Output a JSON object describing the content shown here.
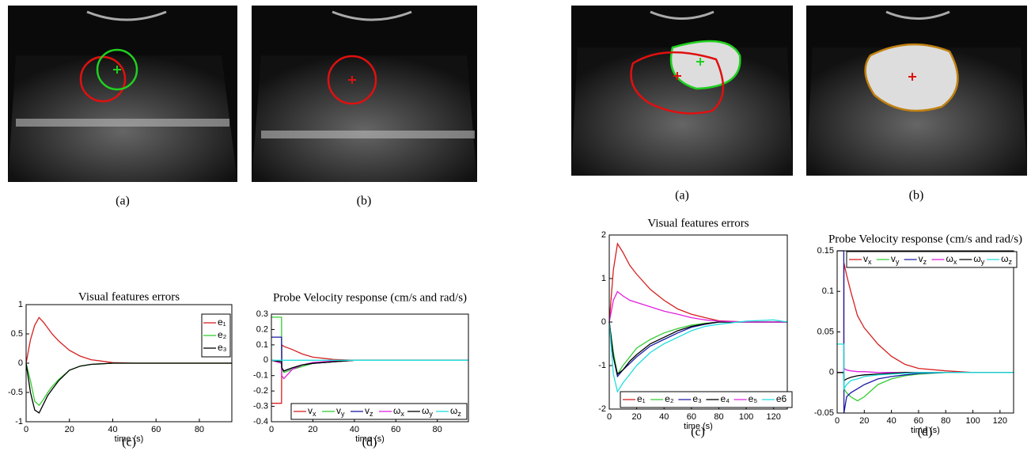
{
  "captions": [
    "(a)",
    "(b)",
    "(c)",
    "(d)",
    "(a)",
    "(b)",
    "(c)",
    "(d)"
  ],
  "chart_data": [
    {
      "type": "line",
      "title": "Visual features errors",
      "xlabel": "time (s)",
      "x": [
        0,
        2,
        4,
        6,
        8,
        10,
        12,
        15,
        20,
        25,
        30,
        40,
        50,
        60,
        80,
        95
      ],
      "xlim": [
        0,
        95
      ],
      "xticks": [
        0,
        20,
        40,
        60,
        80
      ],
      "ylim": [
        -1,
        1
      ],
      "yticks": [
        -1,
        -0.5,
        0,
        0.5,
        1
      ],
      "legend": "upper right",
      "series": [
        {
          "name": "e₁",
          "color": "#d62020",
          "values": [
            0,
            0.4,
            0.65,
            0.78,
            0.7,
            0.6,
            0.5,
            0.38,
            0.22,
            0.12,
            0.06,
            0.01,
            0,
            0,
            0,
            0
          ]
        },
        {
          "name": "e₂",
          "color": "#33cc33",
          "values": [
            0,
            -0.3,
            -0.65,
            -0.72,
            -0.62,
            -0.5,
            -0.4,
            -0.28,
            -0.12,
            -0.05,
            -0.02,
            0,
            0,
            0,
            0,
            0
          ]
        },
        {
          "name": "e₃",
          "color": "#000000",
          "values": [
            0,
            -0.5,
            -0.8,
            -0.85,
            -0.7,
            -0.55,
            -0.45,
            -0.3,
            -0.12,
            -0.05,
            -0.02,
            0,
            0,
            0,
            0,
            0
          ]
        }
      ]
    },
    {
      "type": "line",
      "title": "Probe Velocity response (cm/s and rad/s)",
      "xlabel": "time (s)",
      "x": [
        0,
        4.9,
        5,
        6,
        8,
        10,
        15,
        20,
        30,
        40,
        60,
        95
      ],
      "xlim": [
        0,
        95
      ],
      "xticks": [
        0,
        20,
        40,
        60,
        80
      ],
      "ylim": [
        -0.4,
        0.3
      ],
      "yticks": [
        -0.4,
        -0.3,
        -0.2,
        -0.1,
        0,
        0.1,
        0.2,
        0.3
      ],
      "legend": "lower right",
      "series": [
        {
          "name": "vx",
          "color": "#d62020",
          "values": [
            -0.28,
            -0.28,
            0.1,
            0.09,
            0.08,
            0.07,
            0.04,
            0.02,
            0.005,
            0,
            0,
            0
          ]
        },
        {
          "name": "vy",
          "color": "#33cc33",
          "values": [
            0.28,
            0.28,
            -0.05,
            -0.08,
            -0.07,
            -0.06,
            -0.04,
            -0.02,
            -0.01,
            0,
            0,
            0
          ]
        },
        {
          "name": "vz",
          "color": "#1a1aa6",
          "values": [
            0.15,
            0.15,
            -0.05,
            -0.07,
            -0.06,
            -0.05,
            -0.03,
            -0.02,
            -0.01,
            0,
            0,
            0
          ]
        },
        {
          "name": "ωx",
          "color": "#e020e0",
          "values": [
            0,
            -0.02,
            -0.1,
            -0.12,
            -0.09,
            -0.06,
            -0.03,
            -0.015,
            -0.005,
            0,
            0,
            0
          ]
        },
        {
          "name": "ωy",
          "color": "#000000",
          "values": [
            0,
            -0.01,
            -0.05,
            -0.07,
            -0.06,
            -0.05,
            -0.03,
            -0.02,
            -0.01,
            0,
            0,
            0
          ]
        },
        {
          "name": "ωz",
          "color": "#22dddd",
          "values": [
            0,
            0,
            0,
            0,
            0,
            0,
            0,
            0,
            0,
            0,
            0,
            0
          ]
        }
      ]
    },
    {
      "type": "line",
      "title": "Visual features errors",
      "xlabel": "time (s)",
      "x": [
        0,
        3,
        6,
        10,
        15,
        20,
        30,
        40,
        50,
        60,
        70,
        80,
        100,
        120,
        130
      ],
      "xlim": [
        0,
        130
      ],
      "xticks": [
        0,
        20,
        40,
        60,
        80,
        100,
        120
      ],
      "ylim": [
        -2,
        2
      ],
      "yticks": [
        -2,
        -1,
        0,
        1,
        2
      ],
      "legend": "lower center",
      "series": [
        {
          "name": "e₁",
          "color": "#d62020",
          "values": [
            0,
            1.2,
            1.8,
            1.6,
            1.3,
            1.1,
            0.75,
            0.5,
            0.3,
            0.18,
            0.1,
            0.03,
            0,
            0,
            0
          ]
        },
        {
          "name": "e₂",
          "color": "#33cc33",
          "values": [
            0,
            -0.7,
            -1.2,
            -1.0,
            -0.8,
            -0.6,
            -0.4,
            -0.25,
            -0.15,
            -0.07,
            -0.03,
            0,
            0,
            0,
            0
          ]
        },
        {
          "name": "e₃",
          "color": "#1a1aa6",
          "values": [
            0,
            -0.8,
            -1.25,
            -1.1,
            -0.95,
            -0.8,
            -0.55,
            -0.4,
            -0.25,
            -0.12,
            -0.05,
            0,
            0,
            0,
            0
          ]
        },
        {
          "name": "e₄",
          "color": "#000000",
          "values": [
            0,
            -0.8,
            -1.2,
            -1.1,
            -0.9,
            -0.75,
            -0.5,
            -0.35,
            -0.2,
            -0.1,
            -0.04,
            0,
            0,
            0,
            0
          ]
        },
        {
          "name": "e₅",
          "color": "#e020e0",
          "values": [
            0,
            0.5,
            0.7,
            0.6,
            0.5,
            0.45,
            0.35,
            0.25,
            0.18,
            0.1,
            0.05,
            0.02,
            0,
            0,
            0
          ]
        },
        {
          "name": "e6",
          "color": "#22dddd",
          "values": [
            0,
            -1.2,
            -1.6,
            -1.4,
            -1.2,
            -1.0,
            -0.7,
            -0.5,
            -0.35,
            -0.2,
            -0.1,
            -0.05,
            0.02,
            0.05,
            0
          ]
        }
      ]
    },
    {
      "type": "line",
      "title": "Probe Velocity response (cm/s and rad/s)",
      "xlabel": "time (s)",
      "x": [
        0,
        4.9,
        5,
        7,
        10,
        15,
        20,
        30,
        40,
        50,
        60,
        80,
        100,
        130
      ],
      "xlim": [
        0,
        130
      ],
      "xticks": [
        0,
        20,
        40,
        60,
        80,
        100,
        120
      ],
      "ylim": [
        -0.05,
        0.15
      ],
      "yticks": [
        -0.05,
        0,
        0.05,
        0.1,
        0.15
      ],
      "legend": "upper center",
      "series": [
        {
          "name": "vx",
          "color": "#d62020",
          "values": [
            0,
            0,
            0.135,
            0.12,
            0.1,
            0.07,
            0.055,
            0.035,
            0.02,
            0.01,
            0.005,
            0.002,
            0,
            0
          ]
        },
        {
          "name": "vy",
          "color": "#33cc33",
          "values": [
            0,
            0,
            -0.02,
            -0.025,
            -0.03,
            -0.035,
            -0.03,
            -0.015,
            -0.008,
            -0.004,
            -0.002,
            0,
            0,
            0
          ]
        },
        {
          "name": "vz",
          "color": "#1a1aa6",
          "values": [
            0.15,
            0.15,
            -0.05,
            -0.03,
            -0.025,
            -0.02,
            -0.015,
            -0.008,
            -0.005,
            -0.003,
            -0.001,
            0,
            0,
            0
          ]
        },
        {
          "name": "ωx",
          "color": "#e020e0",
          "values": [
            0,
            0,
            0.005,
            0.003,
            0.002,
            0.001,
            0.001,
            0,
            0,
            0,
            0,
            0,
            0,
            0
          ]
        },
        {
          "name": "ωy",
          "color": "#000000",
          "values": [
            0,
            0,
            -0.01,
            -0.008,
            -0.006,
            -0.004,
            -0.003,
            -0.002,
            -0.001,
            0,
            0,
            0,
            0,
            0
          ]
        },
        {
          "name": "ωz",
          "color": "#22dddd",
          "values": [
            0.035,
            0.035,
            -0.02,
            -0.015,
            -0.01,
            -0.008,
            -0.005,
            -0.003,
            -0.002,
            -0.001,
            0,
            0,
            0,
            0
          ]
        }
      ]
    }
  ]
}
